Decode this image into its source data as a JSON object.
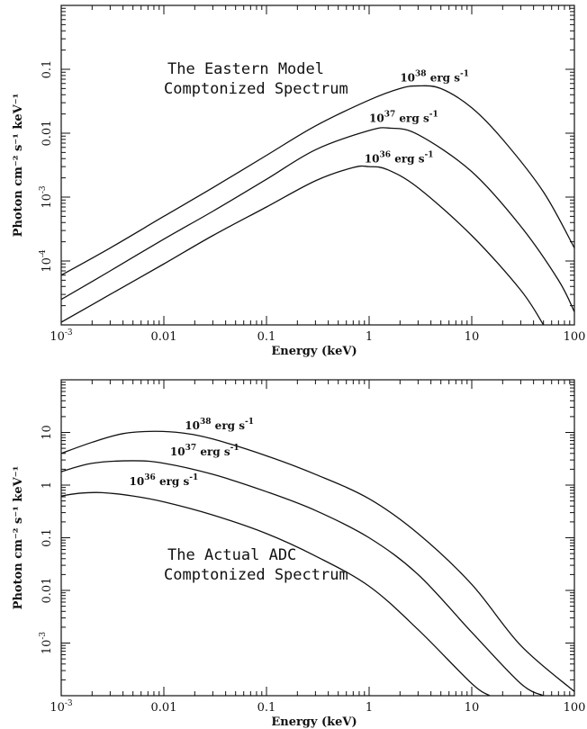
{
  "chart_data": [
    {
      "type": "line",
      "panel": "top",
      "annotation_lines": [
        "The Eastern Model",
        "Comptonized Spectrum"
      ],
      "xlabel": "Energy (keV)",
      "ylabel": "Photon cm⁻² s⁻¹ keV⁻¹",
      "xscale": "log",
      "yscale": "log",
      "xlim": [
        0.001,
        100
      ],
      "ylim": [
        1e-05,
        1
      ],
      "x_ticks": [
        {
          "value": 0.001,
          "base": "10",
          "exp": "-3"
        },
        {
          "value": 0.01,
          "base": "0.01",
          "exp": ""
        },
        {
          "value": 0.1,
          "base": "0.1",
          "exp": ""
        },
        {
          "value": 1,
          "base": "1",
          "exp": ""
        },
        {
          "value": 10,
          "base": "10",
          "exp": ""
        },
        {
          "value": 100,
          "base": "100",
          "exp": ""
        }
      ],
      "y_ticks": [
        {
          "value": 0.1,
          "base": "0.1",
          "exp": ""
        },
        {
          "value": 0.01,
          "base": "0.01",
          "exp": ""
        },
        {
          "value": 0.001,
          "base": "10",
          "exp": "-3"
        },
        {
          "value": 0.0001,
          "base": "10",
          "exp": "-4"
        }
      ],
      "series": [
        {
          "name": "10 38 erg s-1",
          "label_base": "10",
          "label_exp": "38",
          "label_unit": "erg s",
          "label_unit_exp": "-1",
          "label_at": [
            2.0,
            0.065
          ],
          "x": [
            0.001,
            0.003,
            0.01,
            0.03,
            0.1,
            0.3,
            1,
            2,
            3,
            5,
            10,
            20,
            50,
            100
          ],
          "y": [
            6e-05,
            0.00016,
            0.0005,
            0.0014,
            0.0045,
            0.013,
            0.033,
            0.05,
            0.055,
            0.05,
            0.025,
            0.008,
            0.0012,
            0.00016
          ]
        },
        {
          "name": "10 37 erg s-1",
          "label_base": "10",
          "label_exp": "37",
          "label_unit": "erg s",
          "label_unit_exp": "-1",
          "label_at": [
            1.0,
            0.015
          ],
          "x": [
            0.001,
            0.003,
            0.01,
            0.03,
            0.1,
            0.3,
            1,
            1.6,
            3,
            10,
            30,
            70,
            100
          ],
          "y": [
            2.5e-05,
            7e-05,
            0.00022,
            0.0006,
            0.0019,
            0.0055,
            0.011,
            0.012,
            0.0095,
            0.0025,
            0.00035,
            5e-05,
            1.6e-05
          ]
        },
        {
          "name": "10 36 erg s-1",
          "label_base": "10",
          "label_exp": "36",
          "label_unit": "erg s",
          "label_unit_exp": "-1",
          "label_at": [
            0.9,
            0.0035
          ],
          "x": [
            0.001,
            0.003,
            0.01,
            0.03,
            0.1,
            0.3,
            0.7,
            1,
            1.5,
            3,
            10,
            30,
            50
          ],
          "y": [
            1.1e-05,
            3e-05,
            9e-05,
            0.00025,
            0.0007,
            0.0018,
            0.0029,
            0.003,
            0.0027,
            0.0014,
            0.00025,
            3.5e-05,
            1e-05
          ]
        }
      ]
    },
    {
      "type": "line",
      "panel": "bottom",
      "annotation_lines": [
        "The Actual ADC",
        "Comptonized Spectrum"
      ],
      "xlabel": "Energy (keV)",
      "ylabel": "Photon cm⁻² s⁻¹ keV⁻¹",
      "xscale": "log",
      "yscale": "log",
      "xlim": [
        0.001,
        100
      ],
      "ylim": [
        0.0001,
        100
      ],
      "x_ticks": [
        {
          "value": 0.001,
          "base": "10",
          "exp": "-3"
        },
        {
          "value": 0.01,
          "base": "0.01",
          "exp": ""
        },
        {
          "value": 0.1,
          "base": "0.1",
          "exp": ""
        },
        {
          "value": 1,
          "base": "1",
          "exp": ""
        },
        {
          "value": 10,
          "base": "10",
          "exp": ""
        },
        {
          "value": 100,
          "base": "100",
          "exp": ""
        }
      ],
      "y_ticks": [
        {
          "value": 10,
          "base": "10",
          "exp": ""
        },
        {
          "value": 1,
          "base": "1",
          "exp": ""
        },
        {
          "value": 0.1,
          "base": "0.1",
          "exp": ""
        },
        {
          "value": 0.01,
          "base": "0.01",
          "exp": ""
        },
        {
          "value": 0.001,
          "base": "10",
          "exp": "-3"
        }
      ],
      "series": [
        {
          "name": "10 38 erg s-1",
          "label_base": "10",
          "label_exp": "38",
          "label_unit": "erg s",
          "label_unit_exp": "-1",
          "label_at": [
            0.016,
            11.5
          ],
          "x": [
            0.001,
            0.002,
            0.004,
            0.008,
            0.015,
            0.03,
            0.1,
            0.3,
            1,
            3,
            10,
            30,
            100
          ],
          "y": [
            4,
            6.5,
            9.5,
            10.5,
            9.8,
            7.5,
            3.6,
            1.6,
            0.55,
            0.12,
            0.013,
            0.0009,
            0.00012
          ]
        },
        {
          "name": "10 37 erg s-1",
          "label_base": "10",
          "label_exp": "37",
          "label_unit": "erg s",
          "label_unit_exp": "-1",
          "label_at": [
            0.0115,
            3.7
          ],
          "x": [
            0.001,
            0.002,
            0.005,
            0.01,
            0.03,
            0.1,
            0.3,
            1,
            3,
            10,
            30,
            50
          ],
          "y": [
            1.8,
            2.6,
            2.9,
            2.6,
            1.6,
            0.75,
            0.33,
            0.1,
            0.02,
            0.0016,
            0.00017,
            0.0001
          ]
        },
        {
          "name": "10 36 erg s-1",
          "label_base": "10",
          "label_exp": "36",
          "label_unit": "erg s",
          "label_unit_exp": "-1",
          "label_at": [
            0.0046,
            1.0
          ],
          "x": [
            0.001,
            0.0015,
            0.0025,
            0.005,
            0.01,
            0.03,
            0.1,
            0.3,
            1,
            3,
            10,
            15
          ],
          "y": [
            0.62,
            0.7,
            0.72,
            0.62,
            0.48,
            0.27,
            0.12,
            0.045,
            0.012,
            0.0018,
            0.00017,
            0.0001
          ]
        }
      ]
    }
  ]
}
